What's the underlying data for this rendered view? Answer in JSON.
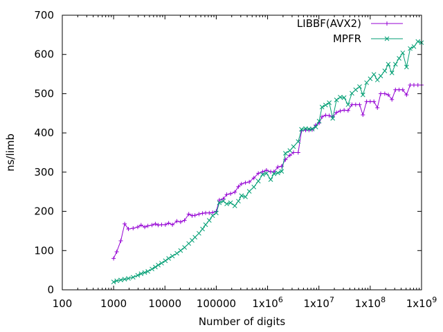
{
  "chart_data": {
    "type": "line",
    "xlabel": "Number of digits",
    "ylabel": "ns/limb",
    "xscale": "log",
    "xlim": [
      100,
      1000000000
    ],
    "ylim": [
      0,
      700
    ],
    "x_ticks": [
      {
        "value": 100,
        "text": "100"
      },
      {
        "value": 1000,
        "text": "1000"
      },
      {
        "value": 10000,
        "text": "10000"
      },
      {
        "value": 100000,
        "text": "100000"
      },
      {
        "value": 1000000,
        "text": "1x10",
        "sup": "6"
      },
      {
        "value": 10000000,
        "text": "1x10",
        "sup": "7"
      },
      {
        "value": 100000000,
        "text": "1x10",
        "sup": "8"
      },
      {
        "value": 1000000000,
        "text": "1x10",
        "sup": "9"
      }
    ],
    "y_ticks": [
      0,
      100,
      200,
      300,
      400,
      500,
      600,
      700
    ],
    "legend_position": "top-right",
    "grid": false,
    "series": [
      {
        "name": "LIBBF(AVX2)",
        "color": "#9400d3",
        "marker": "plus",
        "points": [
          [
            1000,
            80
          ],
          [
            1150,
            97
          ],
          [
            1380,
            125
          ],
          [
            1640,
            168
          ],
          [
            1940,
            155
          ],
          [
            2400,
            157
          ],
          [
            2950,
            160
          ],
          [
            3430,
            165
          ],
          [
            4040,
            160
          ],
          [
            4650,
            163
          ],
          [
            5600,
            165
          ],
          [
            6500,
            168
          ],
          [
            7400,
            165
          ],
          [
            8600,
            166
          ],
          [
            10200,
            166
          ],
          [
            11800,
            170
          ],
          [
            14000,
            166
          ],
          [
            17100,
            175
          ],
          [
            20200,
            173
          ],
          [
            24100,
            177
          ],
          [
            29100,
            193
          ],
          [
            33800,
            189
          ],
          [
            38500,
            190
          ],
          [
            46000,
            193
          ],
          [
            54000,
            195
          ],
          [
            62000,
            196
          ],
          [
            73000,
            196
          ],
          [
            85000,
            197
          ],
          [
            100000,
            200
          ],
          [
            115000,
            229
          ],
          [
            137000,
            232
          ],
          [
            160000,
            243
          ],
          [
            190000,
            245
          ],
          [
            230000,
            249
          ],
          [
            270000,
            263
          ],
          [
            310000,
            270
          ],
          [
            370000,
            273
          ],
          [
            440000,
            275
          ],
          [
            540000,
            285
          ],
          [
            660000,
            297
          ],
          [
            800000,
            301
          ],
          [
            950000,
            305
          ],
          [
            1150000,
            301
          ],
          [
            1330000,
            301
          ],
          [
            1590000,
            313
          ],
          [
            1880000,
            315
          ],
          [
            2230000,
            332
          ],
          [
            2720000,
            343
          ],
          [
            3200000,
            350
          ],
          [
            3950000,
            350
          ],
          [
            4580000,
            405
          ],
          [
            5500000,
            407
          ],
          [
            6400000,
            407
          ],
          [
            7400000,
            408
          ],
          [
            8700000,
            420
          ],
          [
            10100000,
            425
          ],
          [
            11500000,
            441
          ],
          [
            13500000,
            445
          ],
          [
            15900000,
            444
          ],
          [
            18600000,
            440
          ],
          [
            22000000,
            452
          ],
          [
            26000000,
            456
          ],
          [
            31000000,
            458
          ],
          [
            37000000,
            457
          ],
          [
            44000000,
            472
          ],
          [
            52000000,
            472
          ],
          [
            62000000,
            472
          ],
          [
            72000000,
            446
          ],
          [
            85000000,
            480
          ],
          [
            100000000,
            480
          ],
          [
            118000000,
            480
          ],
          [
            138000000,
            464
          ],
          [
            160000000,
            500
          ],
          [
            192000000,
            500
          ],
          [
            225000000,
            497
          ],
          [
            265000000,
            485
          ],
          [
            310000000,
            510
          ],
          [
            365000000,
            510
          ],
          [
            430000000,
            510
          ],
          [
            510000000,
            497
          ],
          [
            600000000,
            522
          ],
          [
            710000000,
            522
          ],
          [
            850000000,
            522
          ],
          [
            1000000000,
            522
          ]
        ]
      },
      {
        "name": "MPFR",
        "color": "#009e73",
        "marker": "cross",
        "points": [
          [
            1000,
            20
          ],
          [
            1150,
            23
          ],
          [
            1380,
            25
          ],
          [
            1640,
            27
          ],
          [
            1940,
            29
          ],
          [
            2400,
            32
          ],
          [
            2950,
            37
          ],
          [
            3430,
            41
          ],
          [
            4040,
            44
          ],
          [
            4650,
            47
          ],
          [
            5600,
            53
          ],
          [
            6500,
            58
          ],
          [
            7400,
            63
          ],
          [
            8600,
            68
          ],
          [
            10200,
            74
          ],
          [
            11800,
            80
          ],
          [
            14000,
            86
          ],
          [
            17100,
            93
          ],
          [
            20200,
            100
          ],
          [
            24100,
            108
          ],
          [
            29100,
            118
          ],
          [
            33800,
            126
          ],
          [
            38500,
            134
          ],
          [
            46000,
            144
          ],
          [
            54000,
            155
          ],
          [
            62000,
            166
          ],
          [
            73000,
            177
          ],
          [
            85000,
            189
          ],
          [
            100000,
            196
          ],
          [
            115000,
            222
          ],
          [
            137000,
            226
          ],
          [
            160000,
            219
          ],
          [
            190000,
            222
          ],
          [
            230000,
            214
          ],
          [
            270000,
            226
          ],
          [
            310000,
            240
          ],
          [
            370000,
            237
          ],
          [
            440000,
            251
          ],
          [
            540000,
            262
          ],
          [
            660000,
            277
          ],
          [
            800000,
            294
          ],
          [
            950000,
            297
          ],
          [
            1150000,
            281
          ],
          [
            1330000,
            296
          ],
          [
            1590000,
            298
          ],
          [
            1880000,
            302
          ],
          [
            2230000,
            348
          ],
          [
            2720000,
            355
          ],
          [
            3200000,
            365
          ],
          [
            3950000,
            378
          ],
          [
            4580000,
            409
          ],
          [
            5500000,
            411
          ],
          [
            6400000,
            410
          ],
          [
            7400000,
            410
          ],
          [
            8700000,
            415
          ],
          [
            10100000,
            430
          ],
          [
            11500000,
            466
          ],
          [
            13500000,
            471
          ],
          [
            15900000,
            477
          ],
          [
            18600000,
            437
          ],
          [
            22000000,
            484
          ],
          [
            26000000,
            491
          ],
          [
            31000000,
            490
          ],
          [
            37000000,
            472
          ],
          [
            44000000,
            501
          ],
          [
            52000000,
            510
          ],
          [
            62000000,
            518
          ],
          [
            72000000,
            497
          ],
          [
            85000000,
            528
          ],
          [
            100000000,
            538
          ],
          [
            118000000,
            549
          ],
          [
            138000000,
            535
          ],
          [
            160000000,
            545
          ],
          [
            192000000,
            558
          ],
          [
            225000000,
            575
          ],
          [
            265000000,
            553
          ],
          [
            310000000,
            575
          ],
          [
            365000000,
            590
          ],
          [
            430000000,
            604
          ],
          [
            510000000,
            568
          ],
          [
            600000000,
            615
          ],
          [
            710000000,
            620
          ],
          [
            850000000,
            633
          ],
          [
            1000000000,
            630
          ]
        ]
      }
    ]
  }
}
